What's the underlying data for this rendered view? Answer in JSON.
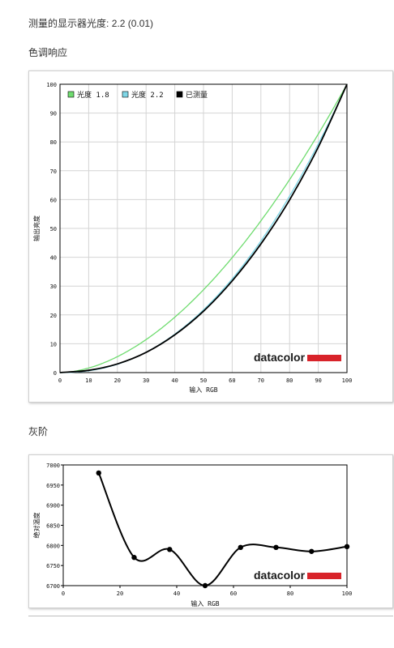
{
  "header": {
    "gamma_label": "测量的显示器光度:",
    "gamma_value": "2.2 (0.01)",
    "tone_title": "色调响应",
    "gray_title": "灰阶"
  },
  "logo": {
    "text": "datacolor",
    "bar_color": "#d8232a"
  },
  "colors": {
    "gamma18": "#6fdc6f",
    "gamma22": "#7fd6e6",
    "measured": "#000000"
  },
  "chart_data": [
    {
      "type": "line",
      "xlabel": "输入 RGB",
      "ylabel": "输出亮度",
      "xlim": [
        0,
        100
      ],
      "ylim": [
        0,
        100
      ],
      "xticks": [
        0,
        10,
        20,
        30,
        40,
        50,
        60,
        70,
        80,
        90,
        100
      ],
      "yticks": [
        0,
        10,
        20,
        30,
        40,
        50,
        60,
        70,
        80,
        90,
        100
      ],
      "grid": true,
      "legend_position": "top-left",
      "series": [
        {
          "name": "光度 1.8",
          "color": "#6fdc6f",
          "gamma": 1.8,
          "x": [
            0,
            10,
            20,
            30,
            40,
            50,
            60,
            70,
            80,
            90,
            100
          ],
          "values": [
            0,
            1.6,
            5.5,
            11.5,
            19.2,
            28.7,
            39.9,
            52.6,
            66.9,
            82.7,
            100
          ]
        },
        {
          "name": "光度 2.2",
          "color": "#7fd6e6",
          "gamma": 2.2,
          "x": [
            0,
            10,
            20,
            30,
            40,
            50,
            60,
            70,
            80,
            90,
            100
          ],
          "values": [
            0,
            0.6,
            2.9,
            7.1,
            13.3,
            21.8,
            32.5,
            45.6,
            61.2,
            79.3,
            100
          ]
        },
        {
          "name": "已测量",
          "color": "#000000",
          "x": [
            0,
            10,
            20,
            30,
            40,
            50,
            60,
            70,
            80,
            90,
            100
          ],
          "values": [
            0,
            0.8,
            3.0,
            7.0,
            13.1,
            21.3,
            31.8,
            44.6,
            59.9,
            78.2,
            100
          ]
        }
      ]
    },
    {
      "type": "line",
      "xlabel": "输入 RGB",
      "ylabel": "绝对温度",
      "xlim": [
        0,
        100
      ],
      "ylim": [
        6700,
        7000
      ],
      "xticks": [
        0,
        20,
        40,
        60,
        80,
        100
      ],
      "yticks": [
        6700,
        6750,
        6800,
        6850,
        6900,
        6950,
        7000
      ],
      "grid": false,
      "series": [
        {
          "name": "",
          "x": [
            12.5,
            25,
            37.5,
            50,
            62.5,
            75,
            87.5,
            100
          ],
          "values": [
            6980,
            6770,
            6790,
            6700,
            6795,
            6795,
            6785,
            6797
          ]
        }
      ]
    }
  ]
}
